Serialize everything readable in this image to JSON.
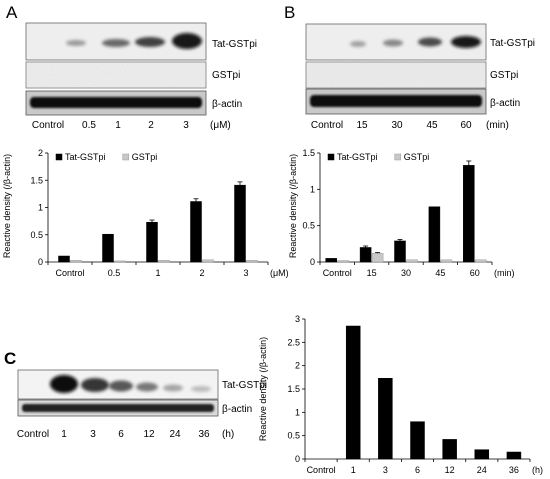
{
  "panels": {
    "A": {
      "label": "A",
      "blots": [
        {
          "name": "Tat-GSTpi"
        },
        {
          "name": "GSTpi"
        },
        {
          "name": "β-actin"
        }
      ],
      "lanes": [
        "Control",
        "0.5",
        "1",
        "2",
        "3"
      ],
      "unit": "(μM)"
    },
    "B": {
      "label": "B",
      "blots": [
        {
          "name": "Tat-GSTpi"
        },
        {
          "name": "GSTpi"
        },
        {
          "name": "β-actin"
        }
      ],
      "lanes": [
        "Control",
        "15",
        "30",
        "45",
        "60"
      ],
      "unit": "(min)"
    },
    "C": {
      "label": "C",
      "blots": [
        {
          "name": "Tat-GSTpi"
        },
        {
          "name": "β-actin"
        }
      ],
      "lanes": [
        "Control",
        "1",
        "3",
        "6",
        "12",
        "24",
        "36"
      ],
      "unit": "(h)"
    }
  },
  "chart_data": [
    {
      "panel": "A",
      "type": "bar",
      "ylabel": "Reactive density  (/β-actin)",
      "xunit": "(μM)",
      "categories": [
        "Control",
        "0.5",
        "1",
        "2",
        "3"
      ],
      "series": [
        {
          "name": "Tat-GSTpi",
          "color": "#000000",
          "values": [
            0.11,
            0.51,
            0.73,
            1.11,
            1.41
          ],
          "errors": [
            0.0,
            0.0,
            0.04,
            0.05,
            0.06
          ]
        },
        {
          "name": "GSTpi",
          "color": "#c8c8c8",
          "values": [
            0.03,
            0.02,
            0.03,
            0.04,
            0.03
          ],
          "errors": [
            0,
            0,
            0,
            0,
            0
          ]
        }
      ],
      "yticks": [
        "0",
        "0.5",
        "1",
        "1.5",
        "2"
      ],
      "ylim": [
        0,
        2
      ],
      "legend": "top-left"
    },
    {
      "panel": "B",
      "type": "bar",
      "ylabel": "Reactive density  (/β-actin)",
      "xunit": "(min)",
      "categories": [
        "Control",
        "15",
        "30",
        "45",
        "60"
      ],
      "series": [
        {
          "name": "Tat-GSTpi",
          "color": "#000000",
          "values": [
            0.05,
            0.2,
            0.29,
            0.76,
            1.33
          ],
          "errors": [
            0.0,
            0.02,
            0.02,
            0.0,
            0.06
          ]
        },
        {
          "name": "GSTpi",
          "color": "#c8c8c8",
          "values": [
            0.02,
            0.12,
            0.03,
            0.03,
            0.03
          ],
          "errors": [
            0,
            0.01,
            0,
            0,
            0
          ]
        }
      ],
      "yticks": [
        "0",
        "0.5",
        "1",
        "1.5"
      ],
      "ylim": [
        0,
        1.5
      ],
      "legend": "top-left"
    },
    {
      "panel": "C",
      "type": "bar",
      "ylabel": "Reactive density (/β-actin)",
      "xunit": "(h)",
      "categories": [
        "Control",
        "1",
        "3",
        "6",
        "12",
        "24",
        "36"
      ],
      "series": [
        {
          "color": "#000000",
          "values": [
            0.0,
            2.85,
            1.73,
            0.8,
            0.42,
            0.2,
            0.15
          ]
        }
      ],
      "yticks": [
        "0",
        "0.5",
        "1",
        "1.5",
        "2",
        "2.5",
        "3"
      ],
      "ylim": [
        0,
        3
      ]
    }
  ]
}
